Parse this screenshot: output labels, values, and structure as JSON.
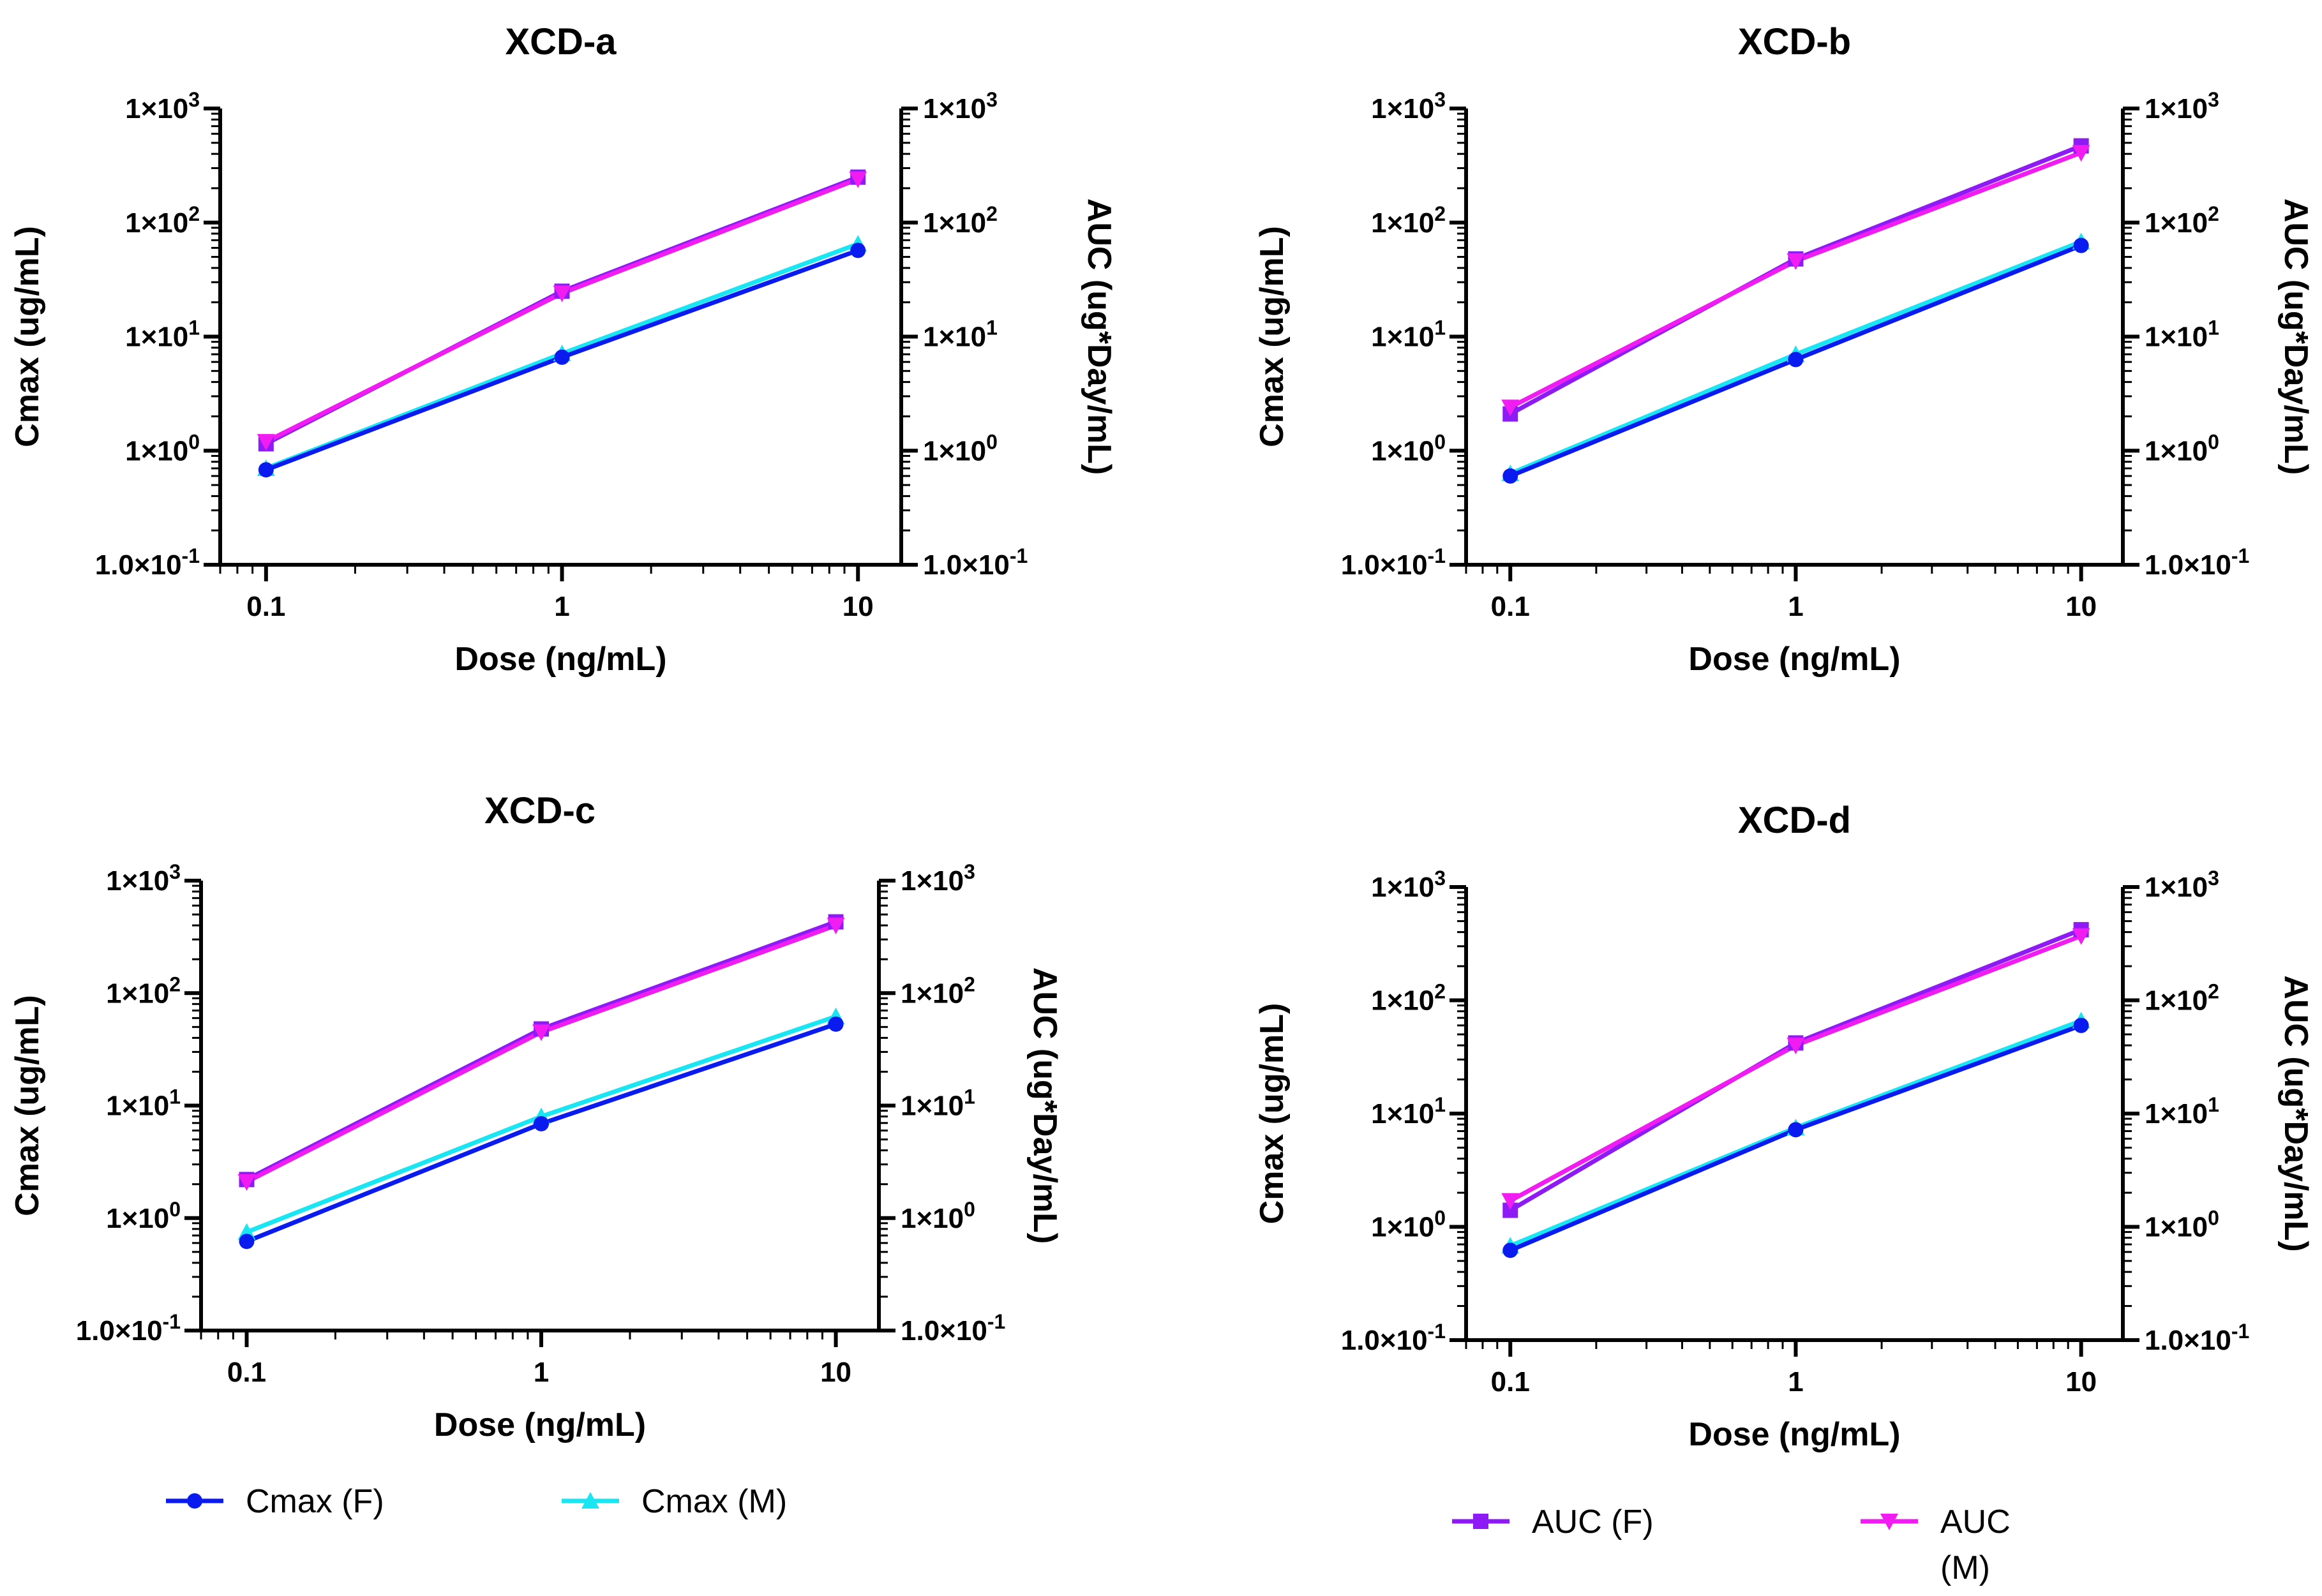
{
  "colors": {
    "cmax_f": "#0a1bf0",
    "cmax_m": "#19e6f2",
    "auc_f": "#8e1bf5",
    "auc_m": "#f01cf2",
    "axis": "#000000"
  },
  "chart_data": [
    {
      "type": "line",
      "title": "XCD-a",
      "xlabel": "Dose (ng/mL)",
      "ylabel": "Cmax (ug/mL)",
      "y2label": "AUC (ug*Day/mL)",
      "xscale": "log",
      "yscale": "log",
      "xlim": [
        0.07,
        14
      ],
      "ylim": [
        0.1,
        1000
      ],
      "y2lim": [
        0.1,
        1000
      ],
      "xticks": [
        "0.1",
        "1",
        "10"
      ],
      "yticks": [
        "1.0×10-1",
        "1×100",
        "1×101",
        "1×102",
        "1×103"
      ],
      "x": [
        0.1,
        1,
        10
      ],
      "series": [
        {
          "name": "Cmax (F)",
          "axis": "left",
          "marker": "circle",
          "values": [
            0.68,
            6.6,
            57
          ]
        },
        {
          "name": "Cmax (M)",
          "axis": "left",
          "marker": "triangle-up",
          "values": [
            0.7,
            7.1,
            65
          ]
        },
        {
          "name": "AUC (F)",
          "axis": "right",
          "marker": "square",
          "values": [
            1.15,
            25,
            250
          ]
        },
        {
          "name": "AUC (M)",
          "axis": "right",
          "marker": "triangle-down",
          "values": [
            1.2,
            24,
            240
          ]
        }
      ]
    },
    {
      "type": "line",
      "title": "XCD-b",
      "xlabel": "Dose (ng/mL)",
      "ylabel": "Cmax (ug/mL)",
      "y2label": "AUC (ug*Day/mL)",
      "xscale": "log",
      "yscale": "log",
      "xlim": [
        0.07,
        14
      ],
      "ylim": [
        0.1,
        1000
      ],
      "y2lim": [
        0.1,
        1000
      ],
      "xticks": [
        "0.1",
        "1",
        "10"
      ],
      "yticks": [
        "1.0×10-1",
        "1×100",
        "1×101",
        "1×102",
        "1×103"
      ],
      "x": [
        0.1,
        1,
        10
      ],
      "series": [
        {
          "name": "Cmax (F)",
          "axis": "left",
          "marker": "circle",
          "values": [
            0.6,
            6.3,
            63
          ]
        },
        {
          "name": "Cmax (M)",
          "axis": "left",
          "marker": "triangle-up",
          "values": [
            0.63,
            7.0,
            68
          ]
        },
        {
          "name": "AUC (F)",
          "axis": "right",
          "marker": "square",
          "values": [
            2.1,
            48,
            470
          ]
        },
        {
          "name": "AUC (M)",
          "axis": "right",
          "marker": "triangle-down",
          "values": [
            2.4,
            46,
            410
          ]
        }
      ]
    },
    {
      "type": "line",
      "title": "XCD-c",
      "xlabel": "Dose (ng/mL)",
      "ylabel": "Cmax (ug/mL)",
      "y2label": "AUC (ug*Day/mL)",
      "xscale": "log",
      "yscale": "log",
      "xlim": [
        0.07,
        14
      ],
      "ylim": [
        0.1,
        1000
      ],
      "y2lim": [
        0.1,
        1000
      ],
      "xticks": [
        "0.1",
        "1",
        "10"
      ],
      "yticks": [
        "1.0×10-1",
        "1×100",
        "1×101",
        "1×102",
        "1×103"
      ],
      "x": [
        0.1,
        1,
        10
      ],
      "series": [
        {
          "name": "Cmax (F)",
          "axis": "left",
          "marker": "circle",
          "values": [
            0.62,
            6.9,
            53
          ]
        },
        {
          "name": "Cmax (M)",
          "axis": "left",
          "marker": "triangle-up",
          "values": [
            0.75,
            8.0,
            62
          ]
        },
        {
          "name": "AUC (F)",
          "axis": "right",
          "marker": "square",
          "values": [
            2.2,
            48,
            430
          ]
        },
        {
          "name": "AUC (M)",
          "axis": "right",
          "marker": "triangle-down",
          "values": [
            2.1,
            45,
            400
          ]
        }
      ]
    },
    {
      "type": "line",
      "title": "XCD-d",
      "xlabel": "Dose (ng/mL)",
      "ylabel": "Cmax (ug/mL)",
      "y2label": "AUC (ug*Day/mL)",
      "xscale": "log",
      "yscale": "log",
      "xlim": [
        0.07,
        14
      ],
      "ylim": [
        0.1,
        1000
      ],
      "y2lim": [
        0.1,
        1000
      ],
      "xticks": [
        "0.1",
        "1",
        "10"
      ],
      "yticks": [
        "1.0×10-1",
        "1×100",
        "1×101",
        "1×102",
        "1×103"
      ],
      "x": [
        0.1,
        1,
        10
      ],
      "series": [
        {
          "name": "Cmax (F)",
          "axis": "left",
          "marker": "circle",
          "values": [
            0.62,
            7.2,
            60
          ]
        },
        {
          "name": "Cmax (M)",
          "axis": "left",
          "marker": "triangle-up",
          "values": [
            0.68,
            7.5,
            66
          ]
        },
        {
          "name": "AUC (F)",
          "axis": "right",
          "marker": "square",
          "values": [
            1.4,
            42,
            420
          ]
        },
        {
          "name": "AUC (M)",
          "axis": "right",
          "marker": "triangle-down",
          "values": [
            1.7,
            40,
            370
          ]
        }
      ]
    }
  ],
  "legends": [
    {
      "placement": "bottom-left",
      "entries": [
        {
          "label": "Cmax (F)",
          "marker": "circle",
          "color_key": "cmax_f"
        },
        {
          "label": "Cmax (M)",
          "marker": "triangle-up",
          "color_key": "cmax_m"
        }
      ]
    },
    {
      "placement": "bottom-right",
      "entries": [
        {
          "label": "AUC (F)",
          "marker": "square",
          "color_key": "auc_f"
        },
        {
          "label": "AUC (M)",
          "marker": "triangle-down",
          "color_key": "auc_m"
        }
      ]
    }
  ]
}
